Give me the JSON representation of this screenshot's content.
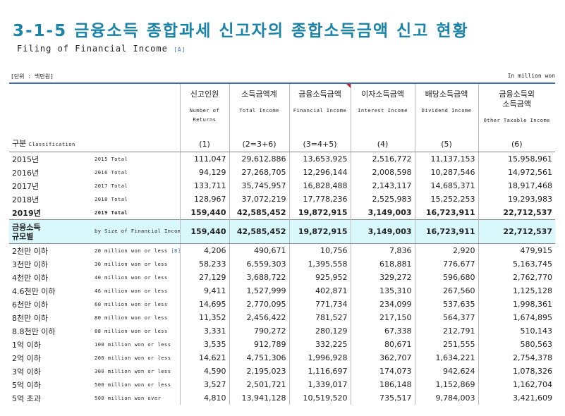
{
  "header": {
    "title": "3-1-5 금융소득 종합과세 신고자의 종합소득금액 신고 현황",
    "subtitle": "Filing of Financial Income",
    "subtitle_tag": "[A]",
    "unit_left": "[단위 : 백만원]",
    "unit_right": "In million won"
  },
  "table": {
    "stub_label": "구분",
    "stub_label_en": "Classification",
    "columns": [
      {
        "ko": [
          "신고인원"
        ],
        "en": [
          "Number of",
          "Returns"
        ],
        "num": "(1)"
      },
      {
        "ko": [
          "소득금액계"
        ],
        "en": [
          "Total Income"
        ],
        "num": "(2=3+6)"
      },
      {
        "ko": [
          "금융소득금액"
        ],
        "en": [
          "Financial Income"
        ],
        "num": "(3=4+5)"
      },
      {
        "ko": [
          "이자소득금액"
        ],
        "en": [
          "Interest Income"
        ],
        "num": "(4)"
      },
      {
        "ko": [
          "배당소득금액"
        ],
        "en": [
          "Dividend Income"
        ],
        "num": "(5)"
      },
      {
        "ko": [
          "금융소득외",
          "소득금액"
        ],
        "en": [
          "Other Taxable Income"
        ],
        "num": "(6)"
      }
    ],
    "rows": [
      {
        "label": [
          "2015년"
        ],
        "label_en": "2015 Total",
        "values": [
          "111,047",
          "29,612,886",
          "13,653,925",
          "2,516,772",
          "11,137,153",
          "15,958,961"
        ]
      },
      {
        "label": [
          "2016년"
        ],
        "label_en": "2016 Total",
        "values": [
          "94,129",
          "27,268,705",
          "12,296,144",
          "2,008,598",
          "10,287,546",
          "14,972,561"
        ]
      },
      {
        "label": [
          "2017년"
        ],
        "label_en": "2017 Total",
        "values": [
          "133,711",
          "35,745,957",
          "16,828,488",
          "2,143,117",
          "14,685,371",
          "18,917,468"
        ]
      },
      {
        "label": [
          "2018년"
        ],
        "label_en": "2018 Total",
        "values": [
          "128,967",
          "37,072,219",
          "17,778,236",
          "2,525,983",
          "15,252,253",
          "19,293,983"
        ]
      },
      {
        "label": [
          "2019년"
        ],
        "label_en": "2019 Total",
        "emphasis": "bold",
        "values": [
          "159,440",
          "42,585,452",
          "19,872,915",
          "3,149,003",
          "16,723,911",
          "22,712,537"
        ]
      },
      {
        "label": [
          "금융소득",
          "규모별"
        ],
        "label_en": "by Size of Financial Income",
        "emphasis": "highlight",
        "values": [
          "159,440",
          "42,585,452",
          "19,872,915",
          "3,149,003",
          "16,723,911",
          "22,712,537"
        ]
      },
      {
        "label": [
          "2천만 이하"
        ],
        "label_en": "20 million won or less",
        "note": "[B]",
        "values": [
          "4,206",
          "490,671",
          "10,756",
          "7,836",
          "2,920",
          "479,915"
        ]
      },
      {
        "label": [
          "3천만 이하"
        ],
        "label_en": "30 million won or less",
        "values": [
          "58,233",
          "6,559,303",
          "1,395,558",
          "618,881",
          "776,677",
          "5,163,745"
        ]
      },
      {
        "label": [
          "4천만 이하"
        ],
        "label_en": "40 million won or less",
        "values": [
          "27,129",
          "3,688,722",
          "925,952",
          "329,272",
          "596,680",
          "2,762,770"
        ]
      },
      {
        "label": [
          "4.6천만 이하"
        ],
        "label_en": "46 million won or less",
        "values": [
          "9,411",
          "1,527,999",
          "402,871",
          "135,310",
          "267,560",
          "1,125,128"
        ]
      },
      {
        "label": [
          "6천만 이하"
        ],
        "label_en": "60 million won or less",
        "values": [
          "14,695",
          "2,770,095",
          "771,734",
          "234,099",
          "537,635",
          "1,998,361"
        ]
      },
      {
        "label": [
          "8천만 이하"
        ],
        "label_en": "80 million won or less",
        "values": [
          "11,352",
          "2,456,422",
          "781,527",
          "217,150",
          "564,377",
          "1,674,895"
        ]
      },
      {
        "label": [
          "8.8천만 이하"
        ],
        "label_en": "88 million won or less",
        "values": [
          "3,331",
          "790,272",
          "280,129",
          "67,338",
          "212,791",
          "510,143"
        ]
      },
      {
        "label": [
          "1억 이하"
        ],
        "label_en": "100 million won or less",
        "values": [
          "3,535",
          "912,789",
          "332,225",
          "80,671",
          "251,555",
          "580,563"
        ]
      },
      {
        "label": [
          "2억 이하"
        ],
        "label_en": "200 million won or less",
        "values": [
          "14,621",
          "4,751,306",
          "1,996,928",
          "362,707",
          "1,634,221",
          "2,754,378"
        ]
      },
      {
        "label": [
          "3억 이하"
        ],
        "label_en": "300 million won or less",
        "values": [
          "4,590",
          "2,195,023",
          "1,116,697",
          "174,073",
          "942,624",
          "1,078,326"
        ]
      },
      {
        "label": [
          "5억 이하"
        ],
        "label_en": "500 million won or less",
        "values": [
          "3,527",
          "2,501,721",
          "1,339,017",
          "186,148",
          "1,152,869",
          "1,162,704"
        ]
      },
      {
        "label": [
          "5억 초과"
        ],
        "label_en": "500 million won over",
        "values": [
          "4,810",
          "13,941,128",
          "10,519,520",
          "735,517",
          "9,784,003",
          "3,421,609"
        ]
      }
    ]
  }
}
